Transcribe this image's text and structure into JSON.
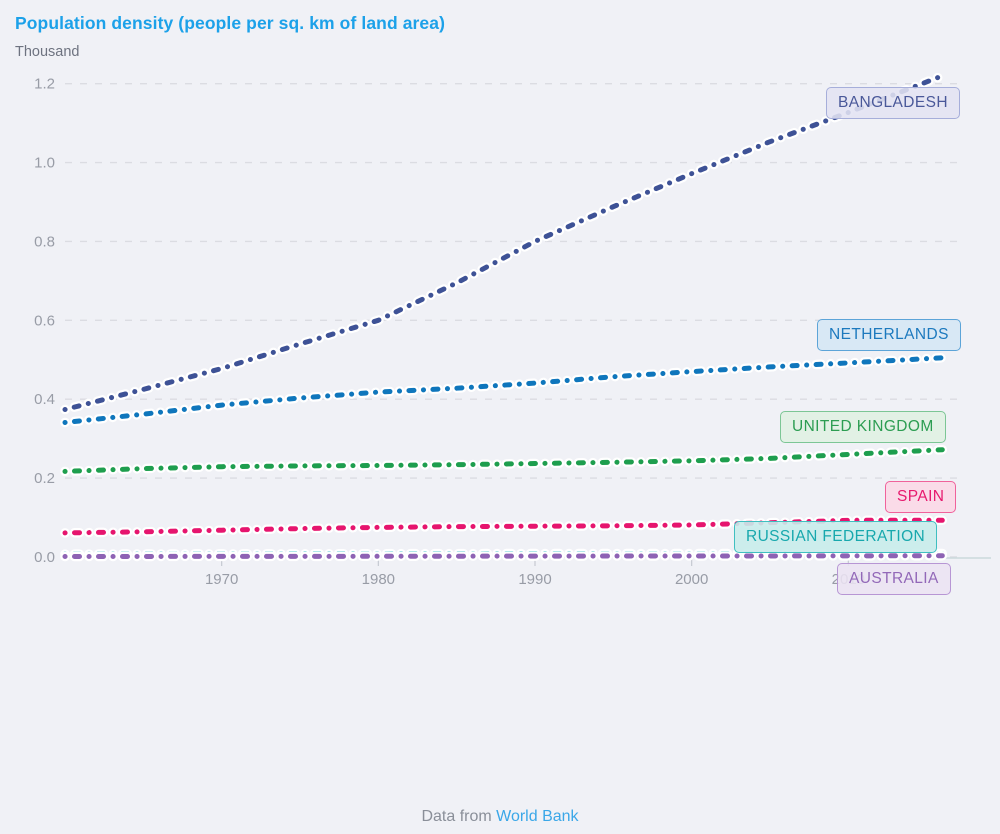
{
  "page": {
    "background_color": "#F0F1F6"
  },
  "header": {
    "title": "Population density (people per sq. km of land area)",
    "title_color": "#1CA1E9",
    "unit_label": "Thousand"
  },
  "footer": {
    "prefix": "Data from ",
    "link_text": "World Bank",
    "link_color": "#3AA7E8"
  },
  "chart_data": {
    "type": "line",
    "title": "Population density (people per sq. km of land area)",
    "ylabel": "Thousand",
    "xlabel": "",
    "line_style": "dotted",
    "grid": "horizontal-dashed",
    "legend_position": "inline-right-labels",
    "xlim": [
      1960,
      2017
    ],
    "ylim": [
      0,
      1.26
    ],
    "y_ticks": [
      0.0,
      0.2,
      0.4,
      0.6,
      0.8,
      1.0,
      1.2
    ],
    "x_ticks": [
      1970,
      1980,
      1990,
      2000,
      2010
    ],
    "axis_text_color": "#989CA6",
    "gridline_color": "#DBDCE2",
    "series": [
      {
        "name": "Bangladesh",
        "label": "BANGLADESH",
        "color": "#3E5296",
        "label_color": "#4A5899",
        "label_bg": "rgba(226,227,242,0.88)",
        "label_border": "#A6AEDA",
        "points": [
          [
            1960,
            0.374
          ],
          [
            1965,
            0.425
          ],
          [
            1970,
            0.478
          ],
          [
            1975,
            0.54
          ],
          [
            1980,
            0.6
          ],
          [
            1985,
            0.695
          ],
          [
            1990,
            0.8
          ],
          [
            1995,
            0.888
          ],
          [
            2000,
            0.972
          ],
          [
            2005,
            1.053
          ],
          [
            2010,
            1.127
          ],
          [
            2016,
            1.22
          ]
        ]
      },
      {
        "name": "Netherlands",
        "label": "NETHERLANDS",
        "color": "#0F76BC",
        "label_color": "#1C79BE",
        "label_bg": "rgba(212,230,245,0.88)",
        "label_border": "#5CA4D8",
        "points": [
          [
            1960,
            0.341
          ],
          [
            1965,
            0.362
          ],
          [
            1970,
            0.385
          ],
          [
            1975,
            0.403
          ],
          [
            1980,
            0.418
          ],
          [
            1985,
            0.428
          ],
          [
            1990,
            0.441
          ],
          [
            1995,
            0.457
          ],
          [
            2000,
            0.47
          ],
          [
            2005,
            0.482
          ],
          [
            2010,
            0.492
          ],
          [
            2016,
            0.505
          ]
        ]
      },
      {
        "name": "United Kingdom",
        "label": "UNITED KINGDOM",
        "color": "#1E9E4E",
        "label_color": "#2C9D52",
        "label_bg": "rgba(223,240,227,0.88)",
        "label_border": "#7CC695",
        "points": [
          [
            1960,
            0.217
          ],
          [
            1965,
            0.224
          ],
          [
            1970,
            0.229
          ],
          [
            1975,
            0.231
          ],
          [
            1980,
            0.232
          ],
          [
            1985,
            0.234
          ],
          [
            1990,
            0.237
          ],
          [
            1995,
            0.24
          ],
          [
            2000,
            0.244
          ],
          [
            2005,
            0.25
          ],
          [
            2010,
            0.26
          ],
          [
            2016,
            0.272
          ]
        ]
      },
      {
        "name": "Spain",
        "label": "SPAIN",
        "color": "#E6156E",
        "label_color": "#E7196E",
        "label_bg": "rgba(250,215,230,0.88)",
        "label_border": "#F0629B",
        "points": [
          [
            1960,
            0.061
          ],
          [
            1965,
            0.064
          ],
          [
            1970,
            0.068
          ],
          [
            1975,
            0.072
          ],
          [
            1980,
            0.075
          ],
          [
            1985,
            0.077
          ],
          [
            1990,
            0.078
          ],
          [
            1995,
            0.079
          ],
          [
            2000,
            0.081
          ],
          [
            2005,
            0.087
          ],
          [
            2010,
            0.093
          ],
          [
            2016,
            0.093
          ]
        ]
      },
      {
        "name": "Russian Federation",
        "label": "RUSSIAN FEDERATION",
        "color": "#2BBFC4",
        "label_color": "#17A8AD",
        "label_bg": "rgba(200,236,235,0.9)",
        "label_border": "#3FBFC0",
        "points": [
          [
            1960,
            0.0073
          ],
          [
            1970,
            0.0079
          ],
          [
            1980,
            0.0084
          ],
          [
            1990,
            0.009
          ],
          [
            2000,
            0.0089
          ],
          [
            2010,
            0.0087
          ],
          [
            2016,
            0.0088
          ]
        ]
      },
      {
        "name": "Australia",
        "label": "AUSTRALIA",
        "color": "#8E63B4",
        "label_color": "#9268B8",
        "label_bg": "rgba(235,226,243,0.88)",
        "label_border": "#B796D4",
        "points": [
          [
            1960,
            0.0013
          ],
          [
            1970,
            0.0016
          ],
          [
            1980,
            0.0019
          ],
          [
            1990,
            0.0022
          ],
          [
            2000,
            0.0025
          ],
          [
            2010,
            0.0029
          ],
          [
            2016,
            0.0032
          ]
        ]
      }
    ]
  }
}
